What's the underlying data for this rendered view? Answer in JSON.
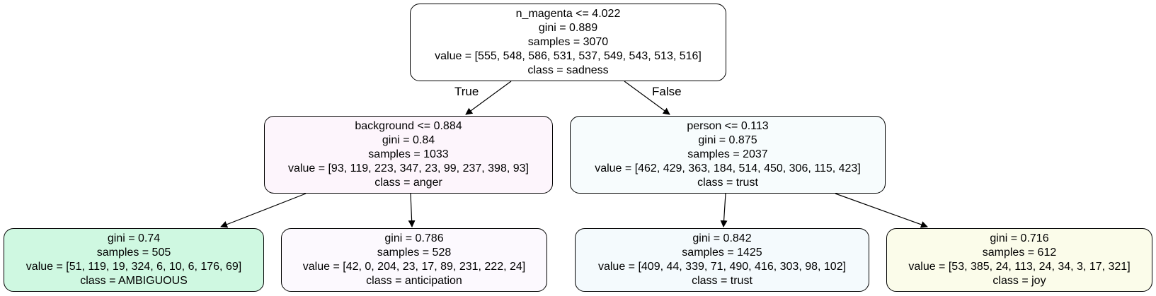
{
  "nodes": {
    "root": {
      "split": "n_magenta <= 4.022",
      "gini": "gini = 0.889",
      "samples": "samples = 3070",
      "value": "value = [555, 548, 586, 531, 537, 549, 543, 513, 516]",
      "class": "class = sadness",
      "fill": "#ffffff"
    },
    "left": {
      "split": "background <= 0.884",
      "gini": "gini = 0.84",
      "samples": "samples = 1033",
      "value": "value = [93, 119, 223, 347, 23, 99, 237, 398, 93]",
      "class": "class = anger",
      "fill": "#fdf5fc"
    },
    "right": {
      "split": "person <= 0.113",
      "gini": "gini = 0.875",
      "samples": "samples = 2037",
      "value": "value = [462, 429, 363, 184, 514, 450, 306, 115, 423]",
      "class": "class = trust",
      "fill": "#f7fcfd"
    },
    "leaf_ll": {
      "gini": "gini = 0.74",
      "samples": "samples = 505",
      "value": "value = [51, 119, 19, 324, 6, 10, 6, 176, 69]",
      "class": "class = AMBIGUOUS",
      "fill": "#cff8e1"
    },
    "leaf_lr": {
      "gini": "gini = 0.786",
      "samples": "samples = 528",
      "value": "value = [42, 0, 204, 23, 17, 89, 231, 222, 24]",
      "class": "class = anticipation",
      "fill": "#fcf9fe"
    },
    "leaf_rl": {
      "gini": "gini = 0.842",
      "samples": "samples = 1425",
      "value": "value = [409, 44, 339, 71, 490, 416, 303, 98, 102]",
      "class": "class = trust",
      "fill": "#f4fafd"
    },
    "leaf_rr": {
      "gini": "gini = 0.716",
      "samples": "samples = 612",
      "value": "value = [53, 385, 24, 113, 24, 34, 3, 17, 321]",
      "class": "class = joy",
      "fill": "#fbfcea"
    }
  },
  "edge_labels": {
    "true": "True",
    "false": "False"
  },
  "colors": {
    "stroke": "#000000"
  }
}
